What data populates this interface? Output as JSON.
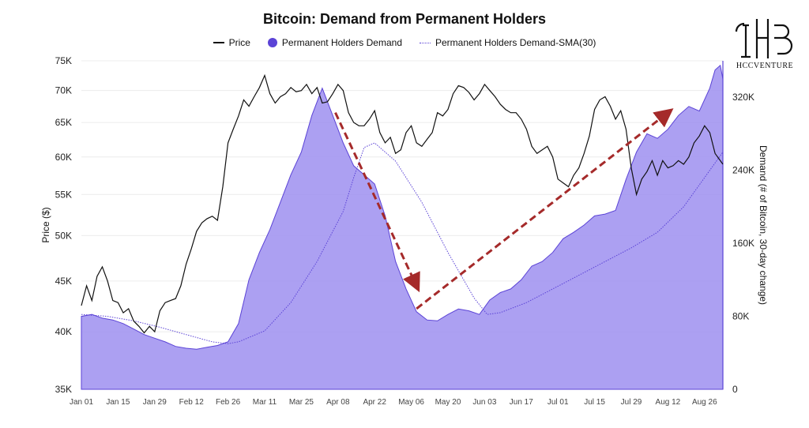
{
  "chart_data": {
    "type": "line",
    "title": "Bitcoin: Demand from Permanent Holders",
    "legend": [
      "Price",
      "Permanent Holders Demand",
      "Permanent Holders Demand-SMA(30)"
    ],
    "legend_position": "top",
    "ylabel_left": "Price ($)",
    "ylabel_right": "Demand (# of Bitcoin, 30-day change)",
    "y_left_scale": "log",
    "y_left_range": [
      35000,
      75000
    ],
    "y_left_ticks": [
      "75K",
      "70K",
      "65K",
      "60K",
      "55K",
      "50K",
      "45K",
      "40K",
      "35K"
    ],
    "y_right_range": [
      0,
      360000
    ],
    "y_right_ticks": [
      "320K",
      "240K",
      "160K",
      "80K",
      "0"
    ],
    "x_range": [
      0,
      245
    ],
    "x_ticks": [
      {
        "day": 0,
        "label": "Jan 01"
      },
      {
        "day": 14,
        "label": "Jan 15"
      },
      {
        "day": 28,
        "label": "Jan 29"
      },
      {
        "day": 42,
        "label": "Feb 12"
      },
      {
        "day": 56,
        "label": "Feb 26"
      },
      {
        "day": 70,
        "label": "Mar 11"
      },
      {
        "day": 84,
        "label": "Mar 25"
      },
      {
        "day": 98,
        "label": "Apr 08"
      },
      {
        "day": 112,
        "label": "Apr 22"
      },
      {
        "day": 126,
        "label": "May 06"
      },
      {
        "day": 140,
        "label": "May 20"
      },
      {
        "day": 154,
        "label": "Jun 03"
      },
      {
        "day": 168,
        "label": "Jun 17"
      },
      {
        "day": 182,
        "label": "Jul 01"
      },
      {
        "day": 196,
        "label": "Jul 15"
      },
      {
        "day": 210,
        "label": "Jul 29"
      },
      {
        "day": 224,
        "label": "Aug 12"
      },
      {
        "day": 238,
        "label": "Aug 26"
      }
    ],
    "grid": true,
    "series": [
      {
        "name": "Price",
        "axis": "left",
        "color": "#111111",
        "x": [
          0,
          2,
          4,
          6,
          8,
          10,
          12,
          14,
          16,
          18,
          20,
          22,
          24,
          26,
          28,
          30,
          32,
          34,
          36,
          38,
          40,
          42,
          44,
          46,
          48,
          50,
          52,
          54,
          56,
          58,
          60,
          62,
          64,
          66,
          68,
          70,
          72,
          74,
          76,
          78,
          80,
          82,
          84,
          86,
          88,
          90,
          92,
          94,
          96,
          98,
          100,
          102,
          104,
          106,
          108,
          110,
          112,
          114,
          116,
          118,
          120,
          122,
          124,
          126,
          128,
          130,
          132,
          134,
          136,
          138,
          140,
          142,
          144,
          146,
          148,
          150,
          152,
          154,
          156,
          158,
          160,
          162,
          164,
          166,
          168,
          170,
          172,
          174,
          176,
          178,
          180,
          182,
          184,
          186,
          188,
          190,
          192,
          194,
          196,
          198,
          200,
          202,
          204,
          206,
          208,
          210,
          212,
          214,
          216,
          218,
          220,
          222,
          224,
          226,
          228,
          230,
          232,
          234,
          236,
          238,
          240,
          242,
          244,
          245
        ],
        "values": [
          42500,
          44500,
          43000,
          45500,
          46500,
          45000,
          43000,
          42800,
          41800,
          42200,
          41000,
          40500,
          39900,
          40500,
          40000,
          42000,
          42800,
          43000,
          43200,
          44500,
          46800,
          48500,
          50500,
          51500,
          52000,
          52300,
          51800,
          56000,
          62000,
          64000,
          66000,
          68500,
          67500,
          69000,
          70500,
          72500,
          69500,
          68000,
          69000,
          69500,
          70500,
          69800,
          70000,
          71000,
          69500,
          70500,
          68000,
          68200,
          69500,
          71000,
          70000,
          66500,
          65000,
          64500,
          64500,
          65500,
          66800,
          63500,
          62000,
          62800,
          60500,
          61000,
          63500,
          64500,
          62000,
          61500,
          62500,
          63500,
          66500,
          66000,
          67000,
          69500,
          70800,
          70500,
          69700,
          68500,
          69500,
          71000,
          70000,
          69000,
          67800,
          67000,
          66500,
          66500,
          65500,
          64000,
          61500,
          60500,
          61000,
          61500,
          60000,
          57000,
          56500,
          56000,
          57500,
          58500,
          60500,
          63000,
          67000,
          68500,
          69000,
          67500,
          65500,
          66800,
          64000,
          58500,
          55000,
          57000,
          58000,
          59500,
          57500,
          59500,
          58500,
          58800,
          59500,
          59000,
          60000,
          62000,
          63000,
          64500,
          63500,
          60500,
          59500,
          59000
        ],
        "note": "approximate daily values read off chart"
      },
      {
        "name": "Permanent Holders Demand",
        "axis": "right",
        "color": "#5b43d6",
        "x": [
          0,
          4,
          8,
          12,
          16,
          20,
          24,
          28,
          32,
          36,
          40,
          44,
          48,
          52,
          56,
          60,
          64,
          68,
          72,
          76,
          80,
          84,
          88,
          92,
          96,
          100,
          104,
          108,
          112,
          116,
          120,
          124,
          128,
          132,
          136,
          140,
          144,
          148,
          152,
          156,
          160,
          164,
          168,
          172,
          176,
          180,
          184,
          188,
          192,
          196,
          200,
          204,
          208,
          212,
          216,
          220,
          224,
          228,
          232,
          236,
          240,
          242,
          244,
          245
        ],
        "values": [
          80000,
          82000,
          78000,
          76000,
          72000,
          66000,
          60000,
          56000,
          52000,
          47000,
          45000,
          44000,
          46000,
          48000,
          52000,
          72000,
          120000,
          150000,
          175000,
          205000,
          235000,
          260000,
          300000,
          330000,
          300000,
          270000,
          245000,
          235000,
          225000,
          190000,
          140000,
          110000,
          85000,
          76000,
          75000,
          82000,
          88000,
          86000,
          82000,
          98000,
          106000,
          110000,
          120000,
          135000,
          140000,
          150000,
          165000,
          172000,
          180000,
          190000,
          192000,
          196000,
          230000,
          260000,
          280000,
          275000,
          285000,
          300000,
          310000,
          305000,
          330000,
          350000,
          355000,
          340000
        ],
        "note": "approximate, 30-day change in BTC"
      },
      {
        "name": "Permanent Holders Demand-SMA(30)",
        "axis": "right",
        "color": "#5b43d6",
        "x": [
          0,
          10,
          20,
          30,
          40,
          50,
          56,
          60,
          70,
          80,
          90,
          100,
          104,
          108,
          112,
          120,
          130,
          140,
          150,
          155,
          160,
          170,
          180,
          190,
          200,
          210,
          220,
          230,
          240,
          245
        ],
        "values": [
          82000,
          80000,
          75000,
          68000,
          60000,
          52000,
          50000,
          52000,
          64000,
          95000,
          140000,
          195000,
          232000,
          265000,
          270000,
          250000,
          205000,
          150000,
          100000,
          82000,
          84000,
          95000,
          110000,
          125000,
          140000,
          155000,
          172000,
          200000,
          240000,
          260000
        ]
      }
    ],
    "annotations": [
      {
        "type": "arrow",
        "color": "#a52a2a",
        "style": "dashed",
        "from": {
          "day": 97,
          "price": 66500
        },
        "to": {
          "day": 128,
          "price": 44500
        }
      },
      {
        "type": "arrow",
        "color": "#a52a2a",
        "style": "dashed",
        "from": {
          "day": 128,
          "price": 42200
        },
        "to": {
          "day": 224,
          "price": 66500
        }
      }
    ]
  },
  "logo": {
    "text": "HCCVENTURE"
  },
  "colors": {
    "demand_fill": "#9d8ff0",
    "demand_line": "#5b43d6",
    "price": "#111111",
    "arrow": "#a52a2a"
  }
}
